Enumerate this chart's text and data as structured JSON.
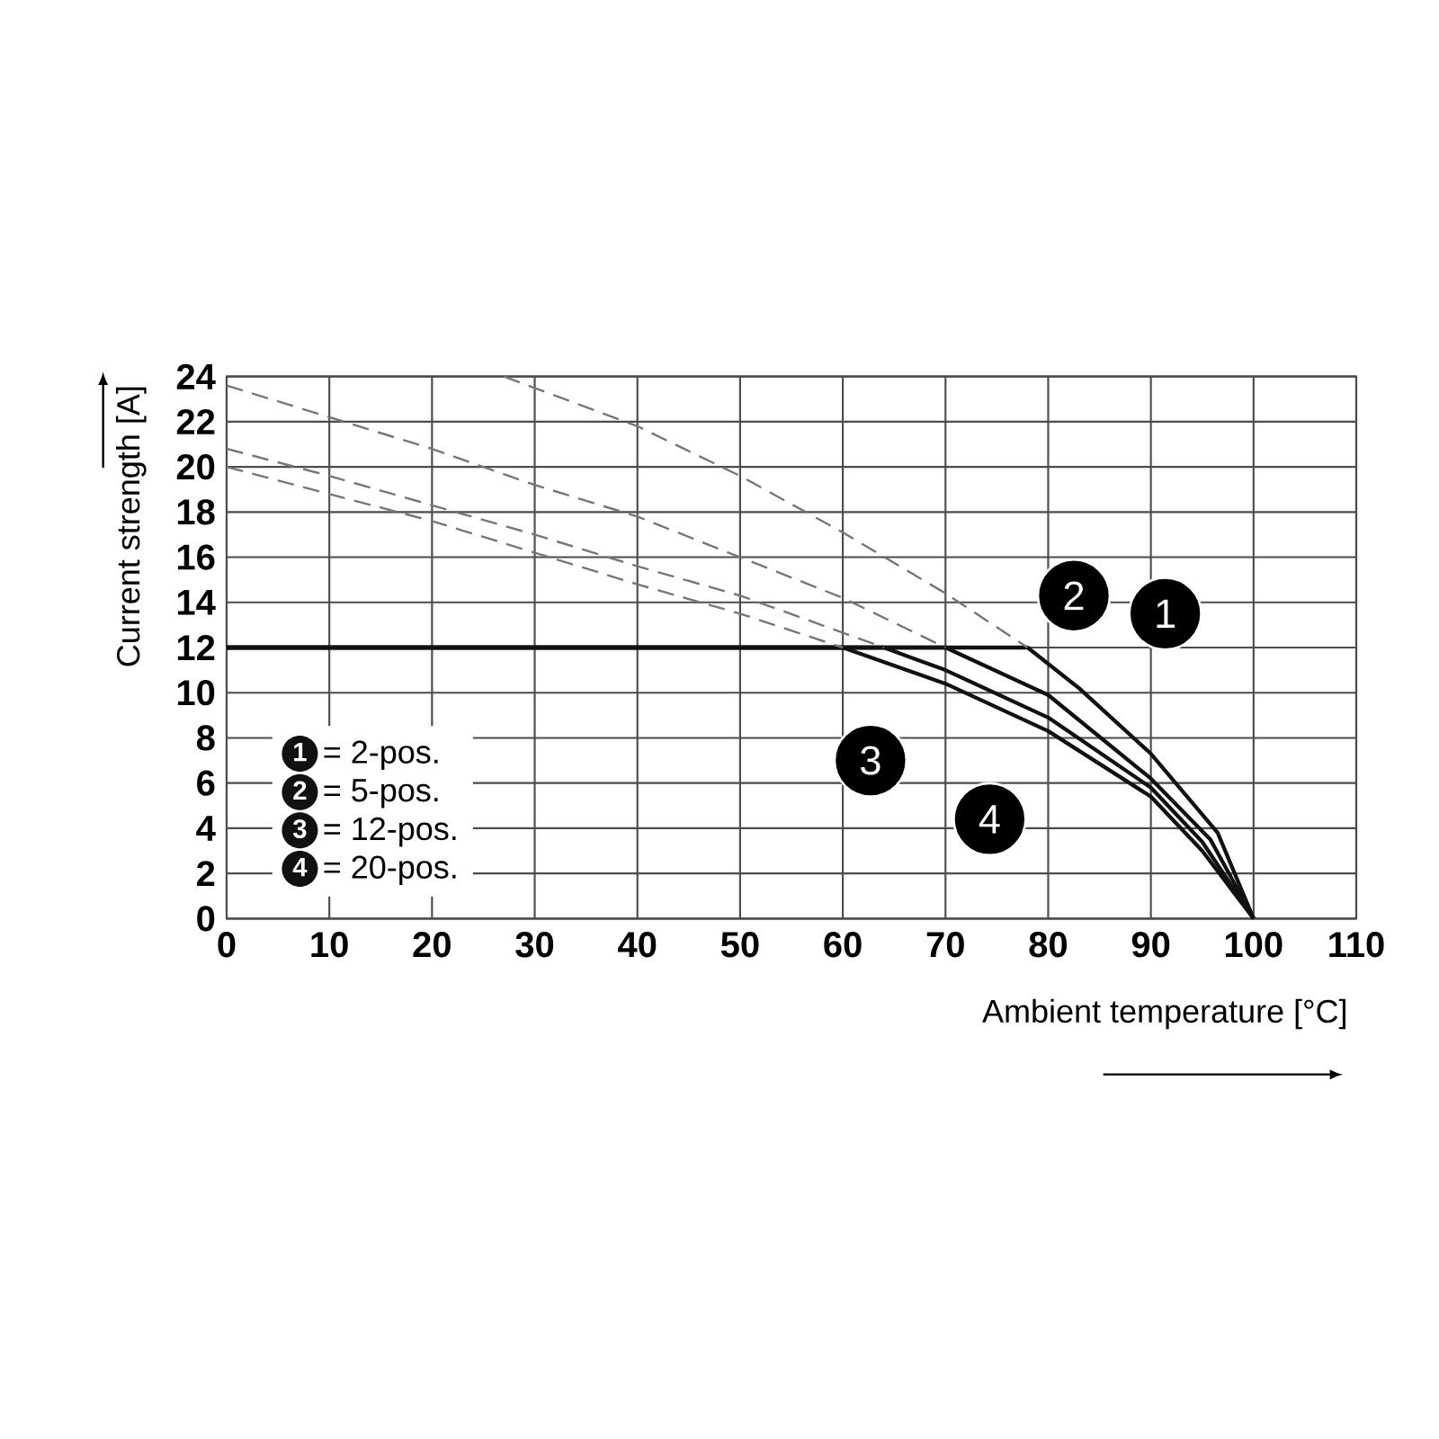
{
  "chart_data": {
    "type": "line",
    "xlabel": "Ambient temperature [°C]",
    "ylabel": "Current strength [A]",
    "xlim": [
      0,
      110
    ],
    "xticks": [
      0,
      10,
      20,
      30,
      40,
      50,
      60,
      70,
      80,
      90,
      100,
      110
    ],
    "ylim": [
      0,
      24
    ],
    "yticks": [
      0,
      2,
      4,
      6,
      8,
      10,
      12,
      14,
      16,
      18,
      20,
      22,
      24
    ],
    "grid": true,
    "legend": "bottom left",
    "marker": "none",
    "series": [
      {
        "name": "= 2-pos.",
        "color": "#111111",
        "line_style": "solid",
        "x": [
          0,
          78,
          83,
          90,
          96.5,
          100
        ],
        "values": [
          12,
          12,
          10.2,
          7.3,
          3.8,
          0
        ]
      },
      {
        "name": "= 5-pos.",
        "color": "#111111",
        "line_style": "solid",
        "x": [
          0,
          70,
          80,
          90,
          95.8,
          100
        ],
        "values": [
          12,
          12,
          9.9,
          6.2,
          3.5,
          0
        ]
      },
      {
        "name": "= 12-pos.",
        "color": "#111111",
        "line_style": "solid",
        "x": [
          0,
          64,
          70,
          80,
          90,
          95,
          100
        ],
        "values": [
          12,
          12,
          11.0,
          8.9,
          5.8,
          3.4,
          0
        ]
      },
      {
        "name": "= 20-pos.",
        "color": "#111111",
        "line_style": "solid",
        "x": [
          0,
          60,
          70,
          80,
          90,
          95,
          100
        ],
        "values": [
          12,
          12,
          10.4,
          8.3,
          5.4,
          3.0,
          0
        ]
      },
      {
        "color": "#777777",
        "line_style": "dashed",
        "x": [
          27,
          40,
          50,
          60,
          70,
          78
        ],
        "values": [
          24,
          21.8,
          19.6,
          17.1,
          14.4,
          12
        ]
      },
      {
        "color": "#777777",
        "line_style": "dashed",
        "x": [
          0,
          10,
          20,
          30,
          40,
          50,
          60,
          70
        ],
        "values": [
          23.6,
          22.2,
          20.8,
          19.2,
          17.8,
          16.0,
          14.2,
          12
        ]
      },
      {
        "color": "#777777",
        "line_style": "dashed",
        "x": [
          0,
          10,
          20,
          30,
          40,
          50,
          64
        ],
        "values": [
          20.8,
          19.6,
          18.3,
          17.0,
          15.6,
          14.3,
          12
        ]
      },
      {
        "color": "#777777",
        "line_style": "dashed",
        "x": [
          0,
          10,
          20,
          30,
          40,
          50,
          60
        ],
        "values": [
          20.0,
          18.8,
          17.6,
          16.2,
          14.8,
          13.5,
          12
        ]
      }
    ],
    "annotations": [
      {
        "text": "1",
        "x": 91.4,
        "y": 13.5
      },
      {
        "text": "2",
        "x": 82.5,
        "y": 14.3
      },
      {
        "text": "3",
        "x": 62.7,
        "y": 7.0
      },
      {
        "text": "4",
        "x": 74.3,
        "y": 4.4
      }
    ]
  }
}
